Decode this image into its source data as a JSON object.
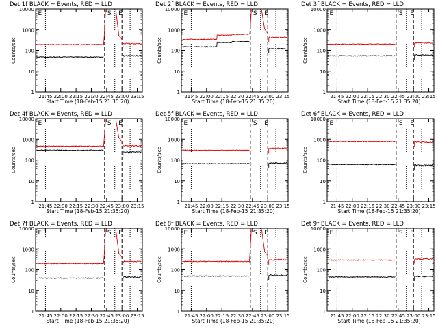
{
  "chart_data": [
    {
      "type": "line",
      "title": "Det 1f BLACK = Events, RED = LLD",
      "xlabel": "Start Time (18-Feb-15 21:35:20)",
      "ylabel": "Counts/sec",
      "yscale": "log",
      "ylim": [
        1,
        10000
      ],
      "xticks": [
        "21:45",
        "22:00",
        "22:15",
        "22:30",
        "22:45",
        "23:00",
        "23:15"
      ],
      "yticks": [
        "1",
        "10",
        "100",
        "1000",
        "10000"
      ],
      "dotted_markers": [
        "21:45",
        "22:53",
        "23:08"
      ],
      "dashed_markers": [
        "22:43",
        "23:00"
      ],
      "marker_labels": [
        {
          "text": "E",
          "at": "21:37"
        },
        {
          "text": "S",
          "at": "22:45"
        },
        {
          "text": "E",
          "at": "22:56"
        }
      ],
      "series": [
        {
          "color": "#e00000",
          "base": 190,
          "spike": true,
          "post": 210,
          "bump": 0
        },
        {
          "color": "#000000",
          "base": 48,
          "post": 55,
          "bump": 0
        }
      ]
    },
    {
      "type": "line",
      "title": "Det 2f BLACK = Events, RED = LLD",
      "xlabel": "Start Time (18-Feb-15 21:35:20)",
      "ylabel": "Counts/sec",
      "yscale": "log",
      "ylim": [
        1,
        10000
      ],
      "xticks": [
        "21:45",
        "22:00",
        "22:15",
        "22:30",
        "22:45",
        "23:00",
        "23:15"
      ],
      "yticks": [
        "1",
        "10",
        "100",
        "1000",
        "10000"
      ],
      "dotted_markers": [
        "21:45",
        "22:53",
        "23:08"
      ],
      "dashed_markers": [
        "22:43",
        "23:00"
      ],
      "marker_labels": [
        {
          "text": "E",
          "at": "21:37"
        },
        {
          "text": "S",
          "at": "22:45"
        },
        {
          "text": "E",
          "at": "22:56"
        }
      ],
      "series": [
        {
          "color": "#e00000",
          "base": 340,
          "spike": true,
          "post": 420,
          "bump": 1
        },
        {
          "color": "#000000",
          "base": 150,
          "post": 120,
          "bump": 1
        }
      ]
    },
    {
      "type": "line",
      "title": "Det 3f BLACK = Events, RED = LLD",
      "xlabel": "Start Time (18-Feb-15 21:35:20)",
      "ylabel": "Counts/sec",
      "yscale": "log",
      "ylim": [
        1,
        10000
      ],
      "xticks": [
        "21:45",
        "22:00",
        "22:15",
        "22:30",
        "22:45",
        "23:00",
        "23:15"
      ],
      "yticks": [
        "1",
        "10",
        "100",
        "1000",
        "10000"
      ],
      "dotted_markers": [
        "21:45",
        "22:53",
        "23:08"
      ],
      "dashed_markers": [
        "22:43",
        "23:00"
      ],
      "marker_labels": [
        {
          "text": "E",
          "at": "21:37"
        },
        {
          "text": "S",
          "at": "22:45"
        },
        {
          "text": "E",
          "at": "22:56"
        }
      ],
      "series": [
        {
          "color": "#e00000",
          "base": 200,
          "spike": false,
          "post": 230,
          "bump": 0
        },
        {
          "color": "#000000",
          "base": 55,
          "post": 60,
          "bump": 0
        }
      ]
    },
    {
      "type": "line",
      "title": "Det 4f BLACK = Events, RED = LLD",
      "xlabel": "Start Time (18-Feb-15 21:35:20)",
      "ylabel": "Counts/sec",
      "yscale": "log",
      "ylim": [
        1,
        10000
      ],
      "xticks": [
        "21:45",
        "22:00",
        "22:15",
        "22:30",
        "22:45",
        "23:00",
        "23:15"
      ],
      "yticks": [
        "1",
        "10",
        "100",
        "1000",
        "10000"
      ],
      "dotted_markers": [
        "21:45",
        "22:53",
        "23:08"
      ],
      "dashed_markers": [
        "22:43",
        "23:00"
      ],
      "marker_labels": [
        {
          "text": "E",
          "at": "21:37"
        },
        {
          "text": "S",
          "at": "22:45"
        },
        {
          "text": "E",
          "at": "22:56"
        }
      ],
      "series": [
        {
          "color": "#e00000",
          "base": 460,
          "spike": true,
          "post": 480,
          "bump": 0
        },
        {
          "color": "#000000",
          "base": 290,
          "post": 240,
          "bump": 0
        }
      ]
    },
    {
      "type": "line",
      "title": "Det 5f BLACK = Events, RED = LLD",
      "xlabel": "Start Time (18-Feb-15 21:35:20)",
      "ylabel": "Counts/sec",
      "yscale": "log",
      "ylim": [
        1,
        10000
      ],
      "xticks": [
        "21:45",
        "22:00",
        "22:15",
        "22:30",
        "22:45",
        "23:00",
        "23:15"
      ],
      "yticks": [
        "1",
        "10",
        "100",
        "1000",
        "10000"
      ],
      "dotted_markers": [
        "21:45",
        "22:53",
        "23:08"
      ],
      "dashed_markers": [
        "22:43",
        "23:00"
      ],
      "marker_labels": [
        {
          "text": "E",
          "at": "21:37"
        },
        {
          "text": "S",
          "at": "22:45"
        },
        {
          "text": "E",
          "at": "22:56"
        }
      ],
      "series": [
        {
          "color": "#e00000",
          "base": 290,
          "spike": false,
          "post": 360,
          "bump": 0
        },
        {
          "color": "#000000",
          "base": 65,
          "post": 70,
          "bump": 0
        }
      ]
    },
    {
      "type": "line",
      "title": "Det 6f BLACK = Events, RED = LLD",
      "xlabel": "Start Time (18-Feb-15 21:35:20)",
      "ylabel": "Counts/sec",
      "yscale": "log",
      "ylim": [
        1,
        10000
      ],
      "xticks": [
        "21:45",
        "22:00",
        "22:15",
        "22:30",
        "22:45",
        "23:00",
        "23:15"
      ],
      "yticks": [
        "1",
        "10",
        "100",
        "1000",
        "10000"
      ],
      "dotted_markers": [
        "21:45",
        "22:53",
        "23:08"
      ],
      "dashed_markers": [
        "22:43",
        "23:00"
      ],
      "marker_labels": [
        {
          "text": "E",
          "at": "21:37"
        },
        {
          "text": "S",
          "at": "22:45"
        },
        {
          "text": "E",
          "at": "22:56"
        }
      ],
      "series": [
        {
          "color": "#e00000",
          "base": 800,
          "spike": false,
          "post": 750,
          "bump": 0
        },
        {
          "color": "#000000",
          "base": 60,
          "post": 55,
          "bump": 0
        }
      ]
    },
    {
      "type": "line",
      "title": "Det 7f BLACK = Events, RED = LLD",
      "xlabel": "Start Time (18-Feb-15 21:35:20)",
      "ylabel": "Counts/sec",
      "yscale": "log",
      "ylim": [
        1,
        10000
      ],
      "xticks": [
        "21:45",
        "22:00",
        "22:15",
        "22:30",
        "22:45",
        "23:00",
        "23:15"
      ],
      "yticks": [
        "1",
        "10",
        "100",
        "1000",
        "10000"
      ],
      "dotted_markers": [
        "21:45",
        "22:53",
        "23:08"
      ],
      "dashed_markers": [
        "22:43",
        "23:00"
      ],
      "marker_labels": [
        {
          "text": "E",
          "at": "21:37"
        },
        {
          "text": "S",
          "at": "22:45"
        },
        {
          "text": "E",
          "at": "22:56"
        }
      ],
      "series": [
        {
          "color": "#e00000",
          "base": 200,
          "spike": true,
          "post": 250,
          "bump": 0
        },
        {
          "color": "#000000",
          "base": 40,
          "post": 45,
          "bump": 0
        }
      ]
    },
    {
      "type": "line",
      "title": "Det 8f BLACK = Events, RED = LLD",
      "xlabel": "Start Time (18-Feb-15 21:35:20)",
      "ylabel": "Counts/sec",
      "yscale": "log",
      "ylim": [
        1,
        10000
      ],
      "xticks": [
        "21:45",
        "22:00",
        "22:15",
        "22:30",
        "22:45",
        "23:00",
        "23:15"
      ],
      "yticks": [
        "1",
        "10",
        "100",
        "1000",
        "10000"
      ],
      "dotted_markers": [
        "21:45",
        "22:53",
        "23:08"
      ],
      "dashed_markers": [
        "22:43",
        "23:00"
      ],
      "marker_labels": [
        {
          "text": "E",
          "at": "21:37"
        },
        {
          "text": "S",
          "at": "22:45"
        },
        {
          "text": "E",
          "at": "22:56"
        }
      ],
      "series": [
        {
          "color": "#e00000",
          "base": 250,
          "spike": true,
          "post": 300,
          "bump": 0
        },
        {
          "color": "#000000",
          "base": 50,
          "post": 55,
          "bump": 0
        }
      ]
    },
    {
      "type": "line",
      "title": "Det 9f BLACK = Events, RED = LLD",
      "xlabel": "Start Time (18-Feb-15 21:35:20)",
      "ylabel": "Counts/sec",
      "yscale": "log",
      "ylim": [
        1,
        10000
      ],
      "xticks": [
        "21:45",
        "22:00",
        "22:15",
        "22:30",
        "22:45",
        "23:00",
        "23:15"
      ],
      "yticks": [
        "1",
        "10",
        "100",
        "1000",
        "10000"
      ],
      "dotted_markers": [
        "21:45",
        "22:53",
        "23:08"
      ],
      "dashed_markers": [
        "22:43",
        "23:00"
      ],
      "marker_labels": [
        {
          "text": "E",
          "at": "21:37"
        },
        {
          "text": "S",
          "at": "22:45"
        },
        {
          "text": "E",
          "at": "22:56"
        }
      ],
      "series": [
        {
          "color": "#e00000",
          "base": 290,
          "spike": false,
          "post": 330,
          "bump": 0
        },
        {
          "color": "#000000",
          "base": 45,
          "post": 48,
          "bump": 0
        }
      ]
    }
  ]
}
